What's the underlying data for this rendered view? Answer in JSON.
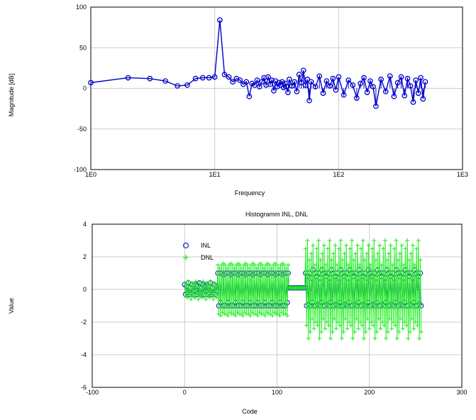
{
  "colors": {
    "spectrum": "#0000cc",
    "inl": "#1f2fbf",
    "dnl": "#22ee22",
    "grid": "#cccccc",
    "frame": "#000000"
  },
  "chart_data": [
    {
      "id": "spectrum",
      "type": "line",
      "title": "",
      "xlabel": "Frequency",
      "ylabel": "Magnitude [dB]",
      "xscale": "log",
      "xlim": [
        1,
        1000
      ],
      "ylim": [
        -100,
        100
      ],
      "xticks": [
        "1E0",
        "1E1",
        "1E2",
        "1E3"
      ],
      "yticks": [
        "100",
        "50",
        "0",
        "-50",
        "-100"
      ],
      "grid": true,
      "marker": "circle",
      "series": [
        {
          "x": [
            1,
            2,
            3,
            4,
            5,
            6,
            7,
            8,
            9,
            10,
            11,
            12,
            13,
            14,
            15,
            16,
            17,
            18,
            19,
            20,
            21,
            22,
            23,
            24,
            25,
            26,
            27,
            28,
            29,
            30,
            31,
            32,
            33,
            34,
            35,
            36,
            37,
            38,
            39,
            40,
            42,
            44,
            46,
            48,
            50,
            52,
            54,
            56,
            58,
            60,
            65,
            70,
            75,
            80,
            85,
            90,
            95,
            100,
            110,
            120,
            130,
            140,
            150,
            160,
            170,
            180,
            190,
            200,
            220,
            240,
            260,
            280,
            300,
            320,
            340,
            360,
            380,
            400,
            420,
            440,
            460,
            480,
            500
          ],
          "y": [
            7,
            13,
            12,
            9,
            3,
            4,
            12,
            13,
            13,
            14,
            84,
            17,
            14,
            8,
            12,
            10,
            5,
            8,
            -10,
            6,
            4,
            10,
            2,
            8,
            13,
            4,
            14,
            5,
            10,
            -3,
            9,
            2,
            7,
            4,
            8,
            1,
            6,
            2,
            -5,
            11,
            3,
            8,
            -4,
            17,
            7,
            22,
            4,
            11,
            -15,
            8,
            2,
            15,
            -6,
            9,
            3,
            12,
            -2,
            14,
            -8,
            10,
            4,
            -12,
            6,
            13,
            -5,
            9,
            2,
            -22,
            11,
            -4,
            15,
            -10,
            7,
            14,
            -9,
            12,
            3,
            -17,
            10,
            -6,
            13,
            -13,
            8
          ]
        }
      ]
    },
    {
      "id": "histogram",
      "type": "scatter",
      "title": "Histogramm INL, DNL",
      "xlabel": "Code",
      "ylabel": "Value",
      "xlim": [
        -100,
        300
      ],
      "ylim": [
        -6,
        4
      ],
      "xticks": [
        "-100",
        "0",
        "100",
        "200",
        "300"
      ],
      "yticks": [
        "4",
        "2",
        "0",
        "-2",
        "-4",
        "-6"
      ],
      "grid": true,
      "legend": {
        "position": "top-left",
        "entries": [
          "INL",
          "DNL"
        ]
      },
      "series": [
        {
          "name": "INL",
          "marker": "circle",
          "segments": [
            {
              "from": 0,
              "to": 35,
              "pattern": [
                0.3,
                -0.3,
                0.2,
                -0.2,
                0.4,
                -0.3,
                0.1,
                -0.2,
                0.3,
                -0.3,
                0.2,
                -0.1
              ]
            },
            {
              "from": 36,
              "to": 112,
              "pattern": [
                1,
                -1,
                1,
                -0.8,
                1,
                -1,
                0.9,
                -1
              ]
            },
            {
              "from": 113,
              "to": 130,
              "pattern": [
                0.1,
                0.1,
                0.1,
                0.1
              ]
            },
            {
              "from": 131,
              "to": 256,
              "pattern": [
                1,
                -1,
                0.8,
                -0.9,
                1,
                -1,
                0.7,
                -0.8,
                1.2,
                -1
              ]
            }
          ]
        },
        {
          "name": "DNL",
          "marker": "plus",
          "segments": [
            {
              "from": 0,
              "to": 35,
              "pattern": [
                0.4,
                -0.4,
                0.3,
                -0.5,
                0.5,
                -0.3,
                0.2,
                -0.6
              ]
            },
            {
              "from": 36,
              "to": 112,
              "pattern": [
                1.5,
                -1.5,
                1.3,
                -1.6,
                1.5,
                -1.4,
                1.6,
                -1.5
              ]
            },
            {
              "from": 113,
              "to": 130,
              "pattern": [
                0.1,
                0.1,
                0.1,
                0.1
              ]
            },
            {
              "from": 131,
              "to": 256,
              "pattern": [
                2.5,
                -2.2,
                3,
                -3,
                1.8,
                -2.6,
                2.2,
                -1.8,
                2.7,
                -2.4,
                1.5,
                -2
              ]
            }
          ]
        }
      ]
    }
  ]
}
